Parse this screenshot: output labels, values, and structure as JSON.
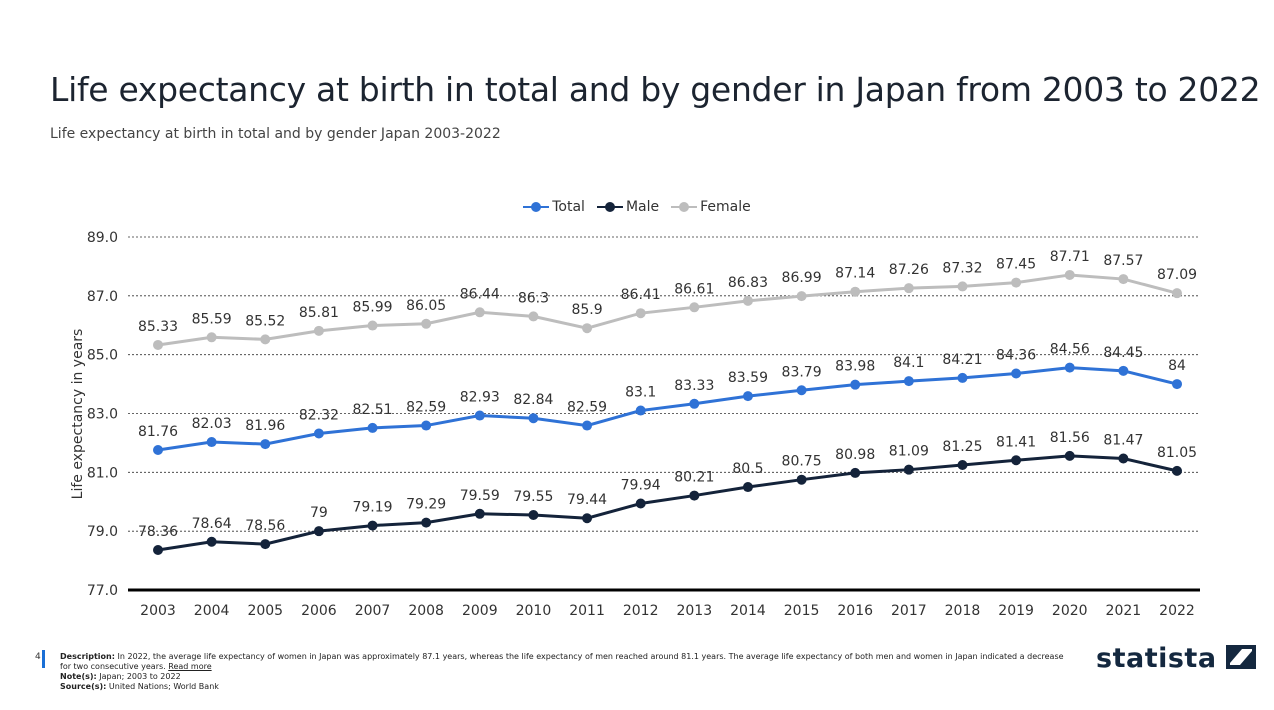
{
  "header": {
    "title": "Life expectancy at birth in total and by gender in Japan from 2003 to 2022",
    "subtitle": "Life expectancy at birth in total and by gender Japan 2003-2022"
  },
  "chart_data": {
    "type": "line",
    "title": "Life expectancy at birth in total and by gender in Japan from 2003 to 2022",
    "ylabel": "Life expectancy in years",
    "xlabel": "",
    "ylim": [
      77,
      89
    ],
    "yticks": [
      "77.0",
      "79.0",
      "81.0",
      "83.0",
      "85.0",
      "87.0",
      "89.0"
    ],
    "grid": true,
    "legend": "top-center",
    "categories": [
      "2003",
      "2004",
      "2005",
      "2006",
      "2007",
      "2008",
      "2009",
      "2010",
      "2011",
      "2012",
      "2013",
      "2014",
      "2015",
      "2016",
      "2017",
      "2018",
      "2019",
      "2020",
      "2021",
      "2022"
    ],
    "series": [
      {
        "name": "Total",
        "color": "#2f72d6",
        "values": [
          81.76,
          82.03,
          81.96,
          82.32,
          82.51,
          82.59,
          82.93,
          82.84,
          82.59,
          83.1,
          83.33,
          83.59,
          83.79,
          83.98,
          84.1,
          84.21,
          84.36,
          84.56,
          84.45,
          84
        ]
      },
      {
        "name": "Male",
        "color": "#14233a",
        "values": [
          78.36,
          78.64,
          78.56,
          79,
          79.19,
          79.29,
          79.59,
          79.55,
          79.44,
          79.94,
          80.21,
          80.5,
          80.75,
          80.98,
          81.09,
          81.25,
          81.41,
          81.56,
          81.47,
          81.05
        ]
      },
      {
        "name": "Female",
        "color": "#bdbdbd",
        "values": [
          85.33,
          85.59,
          85.52,
          85.81,
          85.99,
          86.05,
          86.44,
          86.3,
          85.9,
          86.41,
          86.61,
          86.83,
          86.99,
          87.14,
          87.26,
          87.32,
          87.45,
          87.71,
          87.57,
          87.09
        ]
      }
    ]
  },
  "footer": {
    "page": "4",
    "description_label": "Description:",
    "description": "In 2022, the average life expectancy of women in Japan was approximately 87.1 years, whereas the life expectancy of men reached around 81.1 years. The average life expectancy of both men and women in Japan indicated a decrease for two consecutive years.",
    "read_more": "Read more",
    "notes_label": "Note(s):",
    "notes": "Japan; 2003 to 2022",
    "source_label": "Source(s):",
    "source": "United Nations; World Bank",
    "logo": "statista"
  }
}
